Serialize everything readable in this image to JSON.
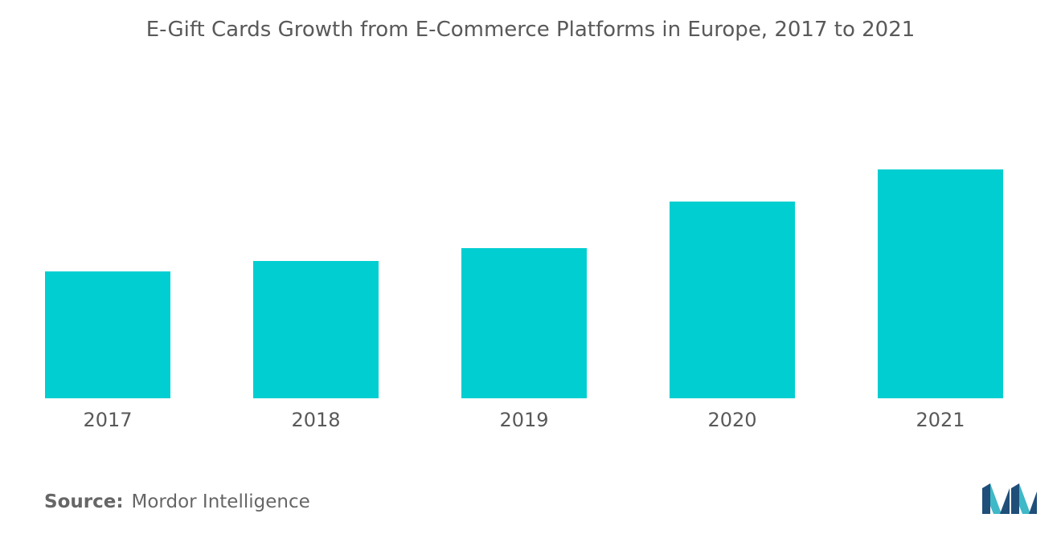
{
  "colors": {
    "bar": "#00CED1",
    "text": "#595959",
    "logo_dark": "#1F4E79",
    "logo_light": "#3FB8C7"
  },
  "chart_data": {
    "type": "bar",
    "title": "E-Gift Cards Growth from E-Commerce Platforms in Europe, 2017 to 2021",
    "categories": [
      "2017",
      "2018",
      "2019",
      "2020",
      "2021"
    ],
    "values": [
      158,
      171,
      187,
      245,
      285
    ],
    "xlabel": "",
    "ylabel": "",
    "ylim": [
      0,
      300
    ],
    "grid": false,
    "legend": "none"
  },
  "source": {
    "label": "Source:",
    "text": "Mordor Intelligence"
  },
  "logo": {
    "icon": "mordor-intelligence-logo-icon"
  }
}
